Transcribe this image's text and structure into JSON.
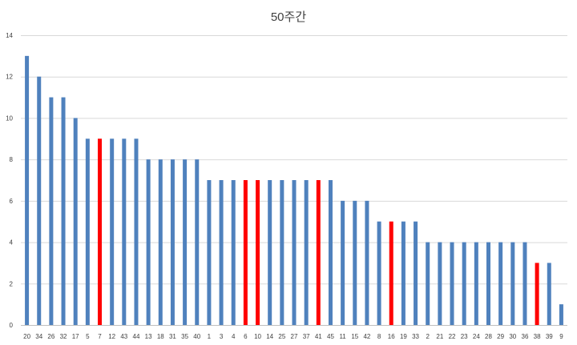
{
  "chart_data": {
    "type": "bar",
    "title": "50주간",
    "xlabel": "",
    "ylabel": "",
    "ylim": [
      0,
      14
    ],
    "yticks": [
      0,
      2,
      4,
      6,
      8,
      10,
      12,
      14
    ],
    "grid": true,
    "legend": "none",
    "categories": [
      "20",
      "34",
      "26",
      "32",
      "17",
      "5",
      "7",
      "12",
      "43",
      "44",
      "13",
      "18",
      "31",
      "35",
      "40",
      "1",
      "3",
      "4",
      "6",
      "10",
      "14",
      "25",
      "27",
      "37",
      "41",
      "45",
      "11",
      "15",
      "42",
      "8",
      "16",
      "19",
      "33",
      "2",
      "21",
      "22",
      "23",
      "24",
      "28",
      "29",
      "30",
      "36",
      "38",
      "39",
      "9"
    ],
    "values": [
      13,
      12,
      11,
      11,
      10,
      9,
      9,
      9,
      9,
      9,
      8,
      8,
      8,
      8,
      8,
      7,
      7,
      7,
      7,
      7,
      7,
      7,
      7,
      7,
      7,
      7,
      6,
      6,
      6,
      5,
      5,
      5,
      5,
      4,
      4,
      4,
      4,
      4,
      4,
      4,
      4,
      4,
      3,
      3,
      1
    ],
    "highlighted": [
      "7",
      "6",
      "10",
      "41",
      "16",
      "38"
    ],
    "colors": {
      "default": "#4f81bd",
      "highlight": "#ff0000"
    }
  }
}
